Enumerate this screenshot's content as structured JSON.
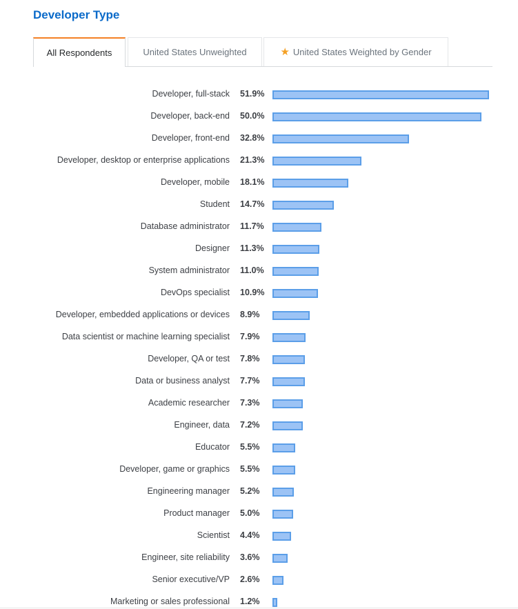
{
  "title": "Developer Type",
  "tabs": [
    {
      "label": "All Respondents",
      "active": true,
      "icon": ""
    },
    {
      "label": "United States Unweighted",
      "active": false,
      "icon": ""
    },
    {
      "label": "United States Weighted by Gender",
      "active": false,
      "icon": "star-icon"
    }
  ],
  "colors": {
    "title": "#0a6ac9",
    "active_tab_accent": "#f48024",
    "bar_fill": "#9cc3f5",
    "bar_border": "#5b9ee8",
    "star": "#f4a024"
  },
  "chart_data": {
    "type": "bar",
    "orientation": "horizontal",
    "title": "",
    "xlabel": "",
    "ylabel": "",
    "unit": "%",
    "xlim": [
      0,
      51.9
    ],
    "grid": false,
    "categories": [
      "Developer, full-stack",
      "Developer, back-end",
      "Developer, front-end",
      "Developer, desktop or enterprise applications",
      "Developer, mobile",
      "Student",
      "Database administrator",
      "Designer",
      "System administrator",
      "DevOps specialist",
      "Developer, embedded applications or devices",
      "Data scientist or machine learning specialist",
      "Developer, QA or test",
      "Data or business analyst",
      "Academic researcher",
      "Engineer, data",
      "Educator",
      "Developer, game or graphics",
      "Engineering manager",
      "Product manager",
      "Scientist",
      "Engineer, site reliability",
      "Senior executive/VP",
      "Marketing or sales professional"
    ],
    "values": [
      51.9,
      50.0,
      32.8,
      21.3,
      18.1,
      14.7,
      11.7,
      11.3,
      11.0,
      10.9,
      8.9,
      7.9,
      7.8,
      7.7,
      7.3,
      7.2,
      5.5,
      5.5,
      5.2,
      5.0,
      4.4,
      3.6,
      2.6,
      1.2
    ],
    "labels": [
      "51.9%",
      "50.0%",
      "32.8%",
      "21.3%",
      "18.1%",
      "14.7%",
      "11.7%",
      "11.3%",
      "11.0%",
      "10.9%",
      "8.9%",
      "7.9%",
      "7.8%",
      "7.7%",
      "7.3%",
      "7.2%",
      "5.5%",
      "5.5%",
      "5.2%",
      "5.0%",
      "4.4%",
      "3.6%",
      "2.6%",
      "1.2%"
    ]
  }
}
